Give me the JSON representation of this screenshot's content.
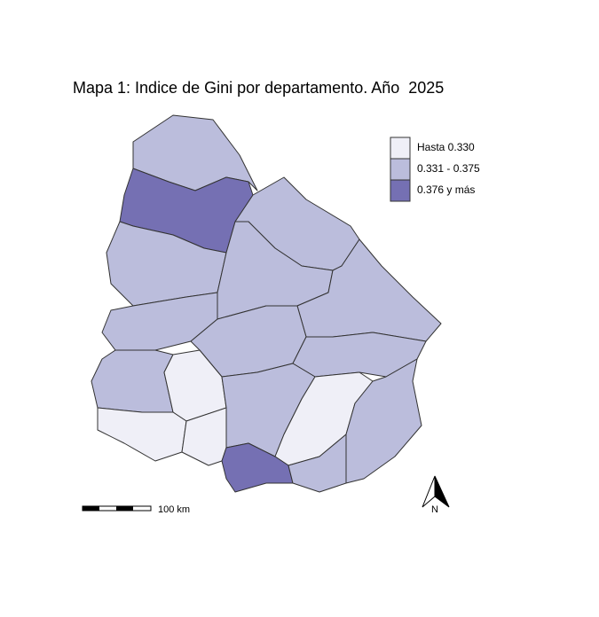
{
  "title": "Mapa 1: Indice de Gini por departamento. Año  2025",
  "legend": [
    {
      "label": "Hasta 0.330",
      "color": "#efeff7"
    },
    {
      "label": "0.331 - 0.375",
      "color": "#bbbddc"
    },
    {
      "label": "0.376 y más",
      "color": "#7570b3"
    }
  ],
  "scale_bar": "100 km",
  "north": "N"
}
